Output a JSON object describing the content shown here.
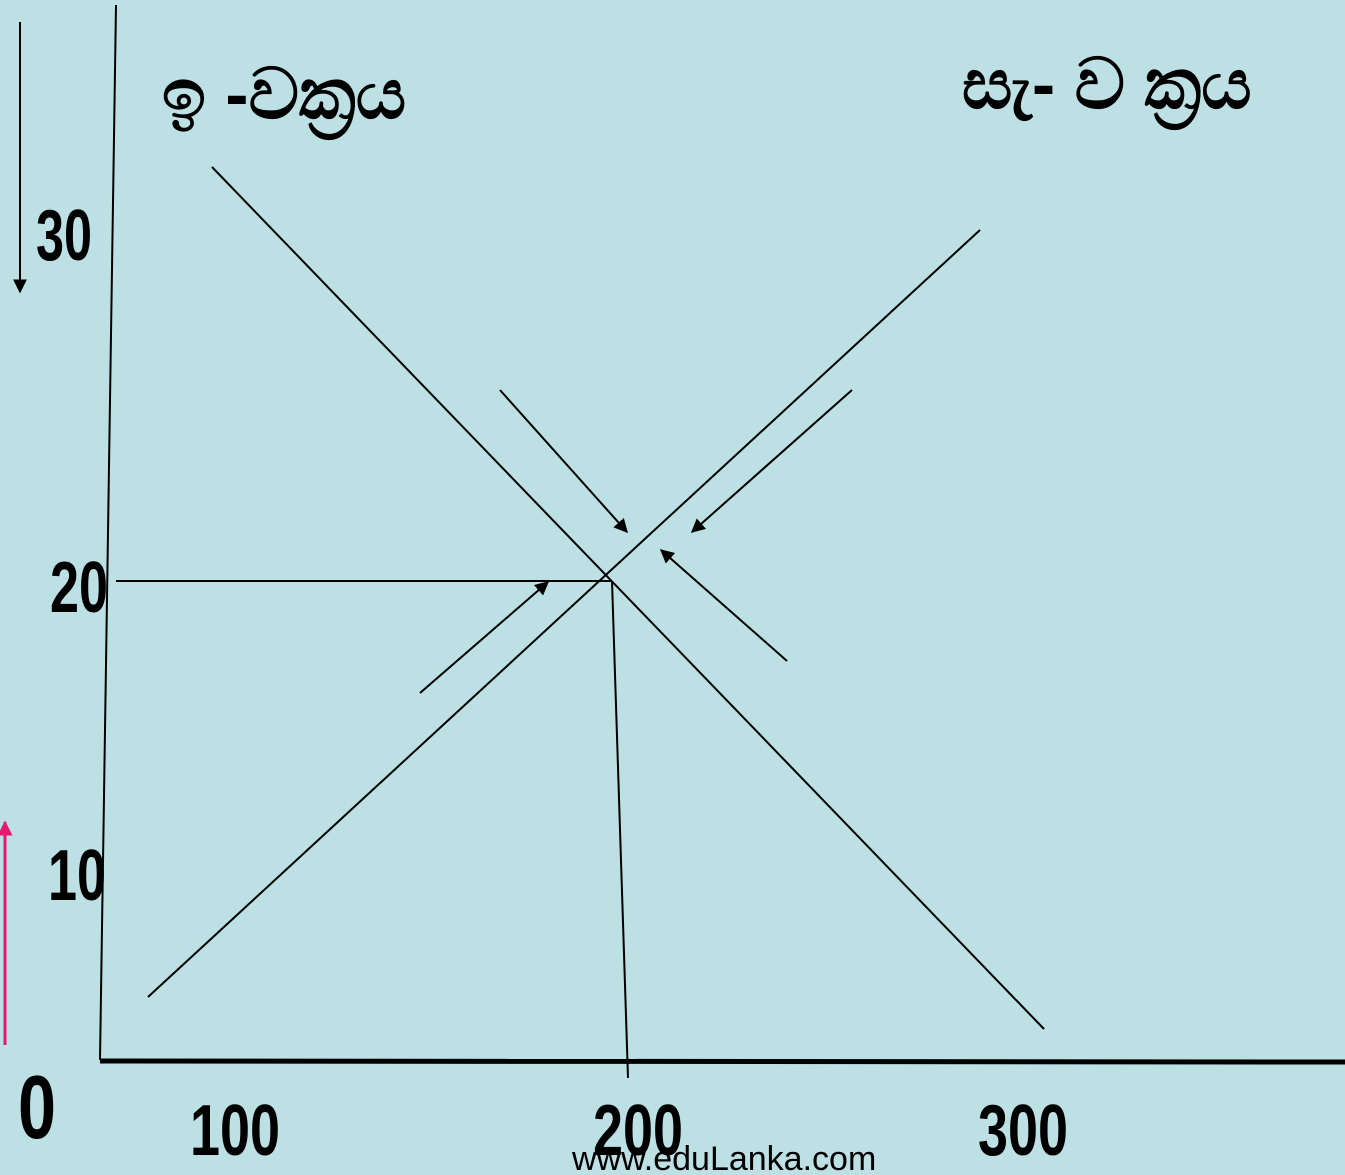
{
  "labels": {
    "demand_curve": "ඉ -වක්‍රය",
    "supply_curve": "සැ- ව ක්‍රය",
    "y_ticks": [
      "30",
      "20",
      "10"
    ],
    "origin": "0",
    "x_ticks": [
      "100",
      "200",
      "300"
    ],
    "website": "www.eduLanka.com"
  }
}
